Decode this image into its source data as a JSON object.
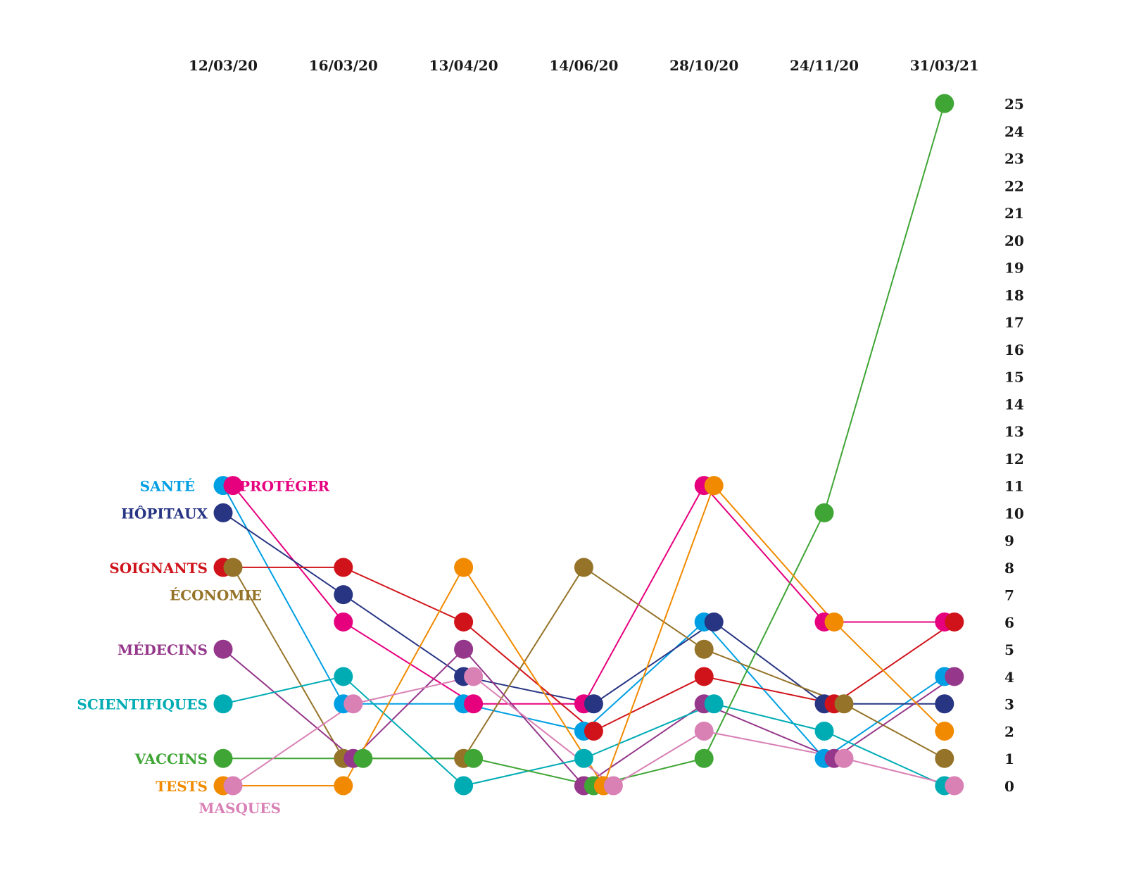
{
  "chart_data": {
    "type": "line",
    "title": "",
    "xlabel": "",
    "ylabel": "",
    "x": [
      "12/03/20",
      "16/03/20",
      "13/04/20",
      "14/06/20",
      "28/10/20",
      "24/11/20",
      "31/03/21"
    ],
    "ylim": [
      0,
      25
    ],
    "yticks": [
      "0",
      "1",
      "2",
      "3",
      "4",
      "5",
      "6",
      "7",
      "8",
      "9",
      "10",
      "11",
      "12",
      "13",
      "14",
      "15",
      "16",
      "17",
      "18",
      "19",
      "20",
      "21",
      "22",
      "23",
      "24",
      "25"
    ],
    "grid": false,
    "legend": "left, inline labels",
    "series": [
      {
        "name": "SANTÉ",
        "color": "#009FE3",
        "values": [
          11,
          3,
          3,
          2,
          6,
          1,
          4
        ]
      },
      {
        "name": "PROTÉGER",
        "color": "#E6007E",
        "values": [
          11,
          6,
          3,
          3,
          11,
          6,
          6
        ]
      },
      {
        "name": "HÔPITAUX",
        "color": "#283583",
        "values": [
          10,
          7,
          4,
          3,
          6,
          3,
          3
        ]
      },
      {
        "name": "SOIGNANTS",
        "color": "#D0131A",
        "values": [
          8,
          8,
          6,
          2,
          4,
          3,
          6
        ]
      },
      {
        "name": "ÉCONOMIE",
        "color": "#957329",
        "values": [
          8,
          1,
          1,
          8,
          5,
          3,
          1
        ]
      },
      {
        "name": "MÉDECINS",
        "color": "#95378A",
        "values": [
          5,
          1,
          5,
          0,
          3,
          1,
          4
        ]
      },
      {
        "name": "SCIENTIFIQUES",
        "color": "#00ACB4",
        "values": [
          3,
          4,
          0,
          1,
          3,
          2,
          0
        ]
      },
      {
        "name": "VACCINS",
        "color": "#3FA535",
        "values": [
          1,
          1,
          1,
          0,
          1,
          10,
          25
        ]
      },
      {
        "name": "TESTS",
        "color": "#F18A00",
        "values": [
          0,
          0,
          8,
          0,
          11,
          6,
          2
        ]
      },
      {
        "name": "MASQUES",
        "color": "#D980B5",
        "values": [
          0,
          3,
          4,
          0,
          2,
          1,
          0
        ]
      }
    ]
  }
}
